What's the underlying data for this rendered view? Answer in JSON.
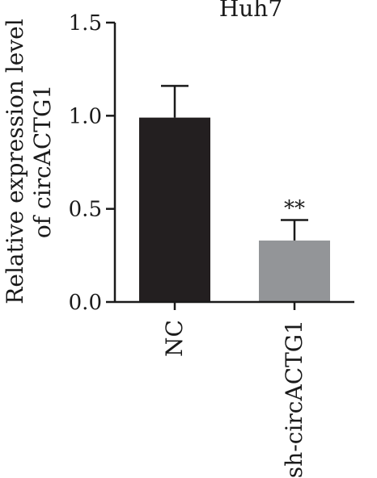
{
  "chart_data": {
    "type": "bar",
    "title": "Huh7",
    "ylabel_lines": [
      "Relative expression level",
      "of circACTG1"
    ],
    "categories": [
      "NC",
      "sh-circACTG1"
    ],
    "values": [
      0.99,
      0.33
    ],
    "errors": [
      0.17,
      0.11
    ],
    "significance": [
      "",
      "**"
    ],
    "ylim": [
      0,
      1.5
    ],
    "yticks": [
      0,
      0.5,
      1.0,
      1.5
    ],
    "ytick_labels": [
      "0.0",
      "0.5",
      "1.0",
      "1.5"
    ],
    "bar_colors": [
      "#231f20",
      "#939598"
    ],
    "grid": false
  }
}
